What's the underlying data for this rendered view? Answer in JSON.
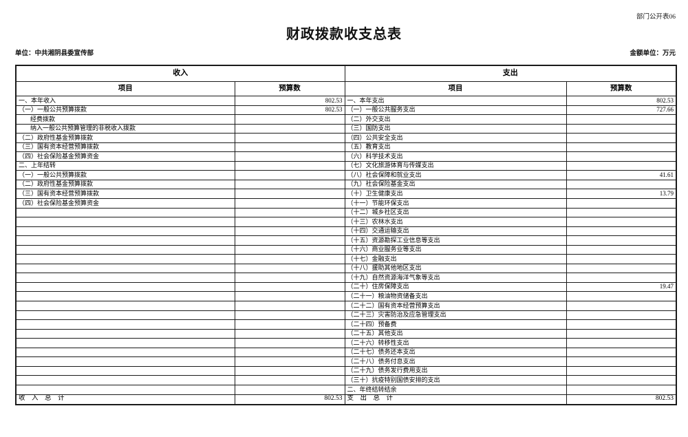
{
  "page": {
    "doc_label": "部门公开表06",
    "title": "财政拨款收支总表",
    "unit_label": "单位：中共湘阴县委宣传部",
    "amount_unit_label": "金额单位：万元"
  },
  "table": {
    "income_header": "收入",
    "expense_header": "支出",
    "item_header": "项目",
    "budget_header": "预算数",
    "income_rows": [
      {
        "item": "一、本年收入",
        "value": "802.53",
        "indent": 0
      },
      {
        "item": "（一）一般公共预算拨款",
        "value": "802.53",
        "indent": 0
      },
      {
        "item": "经费拨款",
        "value": "",
        "indent": 1
      },
      {
        "item": "纳入一般公共预算管理的非税收入拨款",
        "value": "",
        "indent": 1
      },
      {
        "item": "（二）政府性基金预算拨款",
        "value": "",
        "indent": 0
      },
      {
        "item": "（三）国有资本经营预算拨款",
        "value": "",
        "indent": 0
      },
      {
        "item": "（四）社会保险基金预算资金",
        "value": "",
        "indent": 0
      },
      {
        "item": "二、上年结转",
        "value": "",
        "indent": 0
      },
      {
        "item": "（一）一般公共预算拨款",
        "value": "",
        "indent": 0
      },
      {
        "item": "（二）政府性基金预算拨款",
        "value": "",
        "indent": 0
      },
      {
        "item": "（三）国有资本经营预算拨款",
        "value": "",
        "indent": 0
      },
      {
        "item": "（四）社会保险基金预算资金",
        "value": "",
        "indent": 0
      },
      {
        "item": "",
        "value": "",
        "indent": 0
      },
      {
        "item": "",
        "value": "",
        "indent": 0
      },
      {
        "item": "",
        "value": "",
        "indent": 0
      },
      {
        "item": "",
        "value": "",
        "indent": 0
      },
      {
        "item": "",
        "value": "",
        "indent": 0
      },
      {
        "item": "",
        "value": "",
        "indent": 0
      },
      {
        "item": "",
        "value": "",
        "indent": 0
      },
      {
        "item": "",
        "value": "",
        "indent": 0
      },
      {
        "item": "",
        "value": "",
        "indent": 0
      },
      {
        "item": "",
        "value": "",
        "indent": 0
      },
      {
        "item": "",
        "value": "",
        "indent": 0
      },
      {
        "item": "",
        "value": "",
        "indent": 0
      },
      {
        "item": "",
        "value": "",
        "indent": 0
      },
      {
        "item": "",
        "value": "",
        "indent": 0
      },
      {
        "item": "",
        "value": "",
        "indent": 0
      },
      {
        "item": "",
        "value": "",
        "indent": 0
      },
      {
        "item": "",
        "value": "",
        "indent": 0
      },
      {
        "item": "",
        "value": "",
        "indent": 0
      },
      {
        "item": "",
        "value": "",
        "indent": 0
      },
      {
        "item": "",
        "value": "",
        "indent": 0
      }
    ],
    "expense_rows": [
      {
        "item": "一、本年支出",
        "value": "802.53",
        "indent": 0
      },
      {
        "item": "（一）一般公共服务支出",
        "value": "727.66",
        "indent": 0
      },
      {
        "item": "（二）外交支出",
        "value": "",
        "indent": 0
      },
      {
        "item": "（三）国防支出",
        "value": "",
        "indent": 0
      },
      {
        "item": "（四）公共安全支出",
        "value": "",
        "indent": 0
      },
      {
        "item": "（五）教育支出",
        "value": "",
        "indent": 0
      },
      {
        "item": "（六）科学技术支出",
        "value": "",
        "indent": 0
      },
      {
        "item": "（七）文化旅游体育与传媒支出",
        "value": "",
        "indent": 0
      },
      {
        "item": "（八）社会保障和就业支出",
        "value": "41.61",
        "indent": 0
      },
      {
        "item": "（九）社会保险基金支出",
        "value": "",
        "indent": 0
      },
      {
        "item": "（十）卫生健康支出",
        "value": "13.79",
        "indent": 0
      },
      {
        "item": "（十一）节能环保支出",
        "value": "",
        "indent": 0
      },
      {
        "item": "（十二）城乡社区支出",
        "value": "",
        "indent": 0
      },
      {
        "item": "（十三）农林水支出",
        "value": "",
        "indent": 0
      },
      {
        "item": "（十四）交通运输支出",
        "value": "",
        "indent": 0
      },
      {
        "item": "（十五）资源勘探工业信息等支出",
        "value": "",
        "indent": 0
      },
      {
        "item": "（十六）商业服务业等支出",
        "value": "",
        "indent": 0
      },
      {
        "item": "（十七）金融支出",
        "value": "",
        "indent": 0
      },
      {
        "item": "（十八）援助其他地区支出",
        "value": "",
        "indent": 0
      },
      {
        "item": "（十九）自然资源海洋气象等支出",
        "value": "",
        "indent": 0
      },
      {
        "item": "（二十）住房保障支出",
        "value": "19.47",
        "indent": 0
      },
      {
        "item": "（二十一）粮油物资储备支出",
        "value": "",
        "indent": 0
      },
      {
        "item": "（二十二）国有资本经营预算支出",
        "value": "",
        "indent": 0
      },
      {
        "item": "（二十三）灾害防治及应急管理支出",
        "value": "",
        "indent": 0
      },
      {
        "item": "（二十四）预备费",
        "value": "",
        "indent": 0
      },
      {
        "item": "（二十五）其他支出",
        "value": "",
        "indent": 0
      },
      {
        "item": "（二十六）转移性支出",
        "value": "",
        "indent": 0
      },
      {
        "item": "（二十七）债务还本支出",
        "value": "",
        "indent": 0
      },
      {
        "item": "（二十八）债务付息支出",
        "value": "",
        "indent": 0
      },
      {
        "item": "（二十九）债务发行费用支出",
        "value": "",
        "indent": 0
      },
      {
        "item": "（三十）抗疫特别国债安排的支出",
        "value": "",
        "indent": 0
      },
      {
        "item": "二、年终结转结余",
        "value": "",
        "indent": 0
      }
    ],
    "income_total": {
      "label": "收　入　总　计",
      "value": "802.53"
    },
    "expense_total": {
      "label": "支　出　总　计",
      "value": "802.53"
    }
  }
}
